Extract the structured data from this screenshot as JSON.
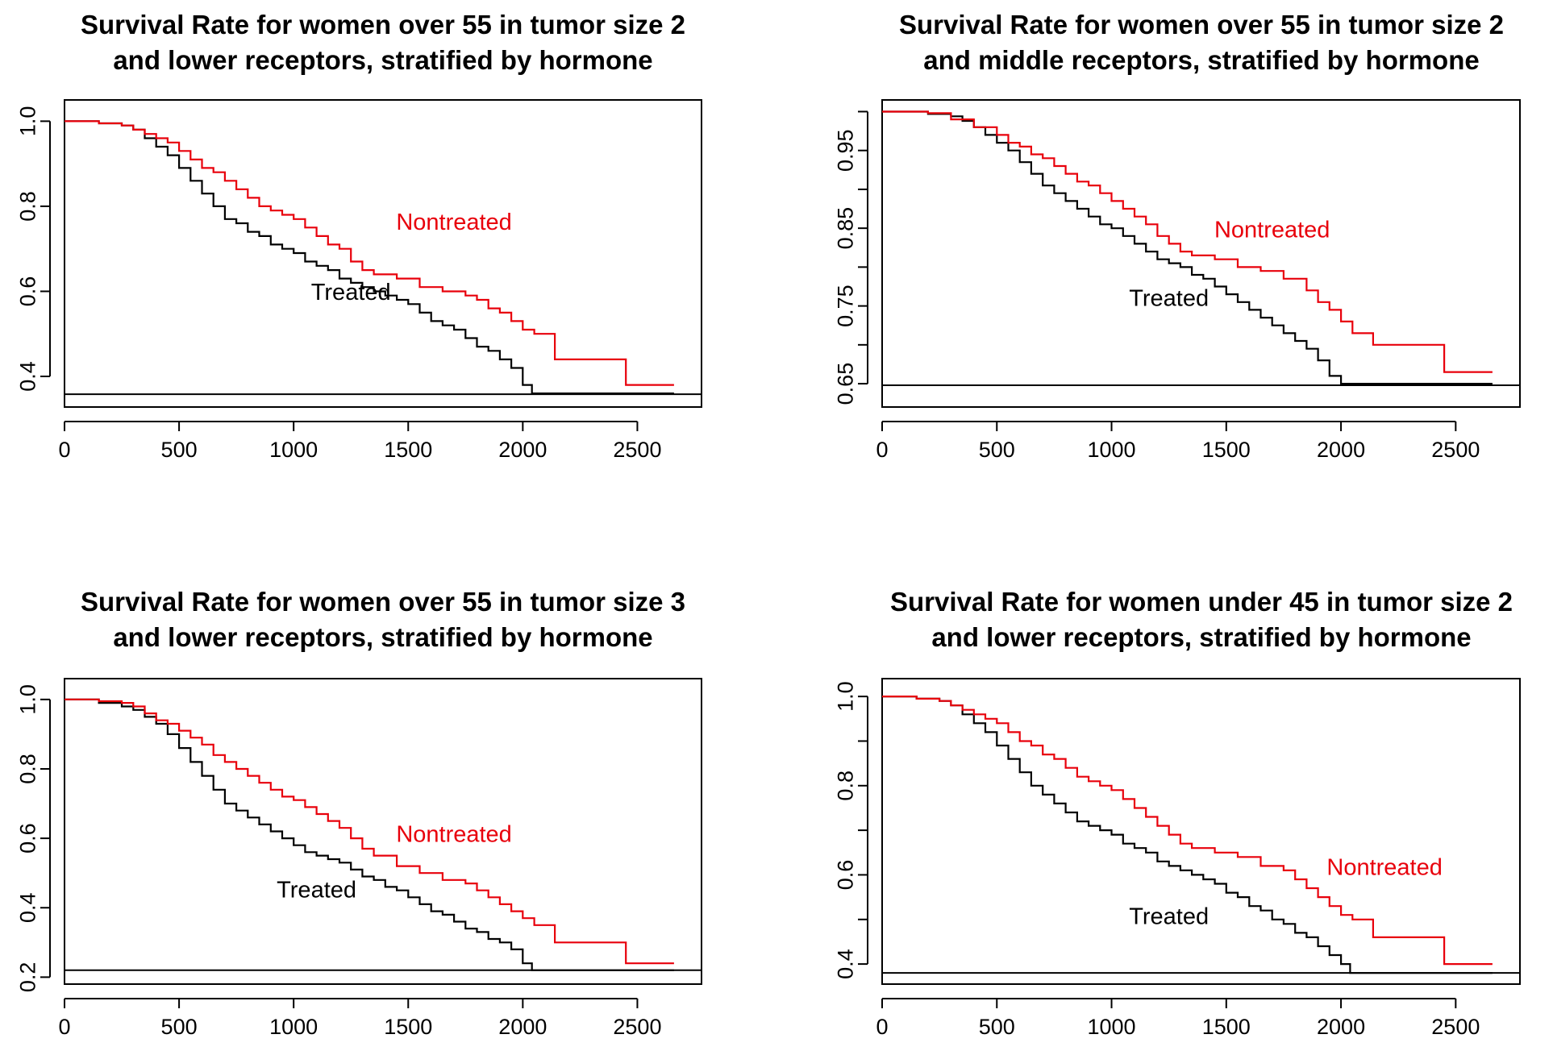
{
  "colors": {
    "treated": "#000000",
    "nontreated": "#e8000b",
    "axis": "#000000"
  },
  "chart_data": [
    {
      "type": "line",
      "title": [
        "Survival Rate for women over 55 in tumor size 2",
        "and lower receptors, stratified by hormone"
      ],
      "xlabel": "",
      "ylabel": "",
      "xlim": [
        0,
        2780
      ],
      "ylim": [
        0.328,
        1.05
      ],
      "xticks": [
        0,
        500,
        1000,
        1500,
        2000,
        2500
      ],
      "yticks": [
        0.4,
        0.6,
        0.8,
        1.0
      ],
      "ytick_labels": [
        "0.4",
        "0.6",
        "0.8",
        "1.0"
      ],
      "hline": 0.358,
      "annotations": [
        {
          "text": "Nontreated",
          "series": "nontreated",
          "x": 1700,
          "y": 0.745
        },
        {
          "text": "Treated",
          "series": "treated",
          "x": 1250,
          "y": 0.58
        }
      ],
      "series": [
        {
          "key": "treated",
          "x": [
            0,
            150,
            250,
            300,
            350,
            400,
            450,
            500,
            550,
            600,
            650,
            700,
            750,
            800,
            850,
            900,
            950,
            1000,
            1050,
            1100,
            1150,
            1200,
            1250,
            1300,
            1350,
            1400,
            1450,
            1500,
            1550,
            1600,
            1650,
            1700,
            1750,
            1800,
            1850,
            1900,
            1950,
            2000,
            2040,
            2660
          ],
          "y": [
            1.0,
            0.995,
            0.99,
            0.98,
            0.96,
            0.94,
            0.92,
            0.89,
            0.86,
            0.83,
            0.8,
            0.77,
            0.76,
            0.74,
            0.73,
            0.71,
            0.7,
            0.69,
            0.67,
            0.66,
            0.65,
            0.63,
            0.62,
            0.61,
            0.6,
            0.59,
            0.58,
            0.57,
            0.55,
            0.53,
            0.52,
            0.51,
            0.49,
            0.47,
            0.46,
            0.44,
            0.42,
            0.38,
            0.36,
            0.36
          ]
        },
        {
          "key": "nontreated",
          "x": [
            0,
            150,
            250,
            300,
            350,
            400,
            450,
            500,
            550,
            600,
            650,
            700,
            750,
            800,
            850,
            900,
            950,
            1000,
            1050,
            1100,
            1150,
            1200,
            1250,
            1300,
            1350,
            1450,
            1550,
            1650,
            1750,
            1800,
            1850,
            1900,
            1950,
            2000,
            2050,
            2140,
            2450,
            2660
          ],
          "y": [
            1.0,
            0.995,
            0.99,
            0.98,
            0.97,
            0.96,
            0.95,
            0.93,
            0.91,
            0.89,
            0.88,
            0.86,
            0.84,
            0.82,
            0.8,
            0.79,
            0.78,
            0.77,
            0.75,
            0.73,
            0.71,
            0.7,
            0.67,
            0.65,
            0.64,
            0.63,
            0.61,
            0.6,
            0.59,
            0.58,
            0.56,
            0.55,
            0.53,
            0.51,
            0.5,
            0.44,
            0.38,
            0.38
          ]
        }
      ]
    },
    {
      "type": "line",
      "title": [
        "Survival Rate for women over 55 in tumor size 2",
        "and middle receptors, stratified by hormone"
      ],
      "xlabel": "",
      "ylabel": "",
      "xlim": [
        0,
        2780
      ],
      "ylim": [
        0.62,
        1.015
      ],
      "xticks": [
        0,
        500,
        1000,
        1500,
        2000,
        2500
      ],
      "yticks": [
        0.65,
        0.7,
        0.75,
        0.8,
        0.85,
        0.9,
        0.95,
        1.0
      ],
      "ytick_labels": [
        "0.65",
        "",
        "0.75",
        "",
        "0.85",
        "",
        "0.95",
        ""
      ],
      "hline": 0.648,
      "annotations": [
        {
          "text": "Nontreated",
          "series": "nontreated",
          "x": 1700,
          "y": 0.838
        },
        {
          "text": "Treated",
          "series": "treated",
          "x": 1250,
          "y": 0.75
        }
      ],
      "series": [
        {
          "key": "treated",
          "x": [
            0,
            200,
            300,
            350,
            400,
            450,
            500,
            550,
            600,
            650,
            700,
            750,
            800,
            850,
            900,
            950,
            1000,
            1050,
            1100,
            1150,
            1200,
            1250,
            1300,
            1350,
            1400,
            1450,
            1500,
            1550,
            1600,
            1650,
            1700,
            1750,
            1800,
            1850,
            1900,
            1950,
            2000,
            2040,
            2660
          ],
          "y": [
            1.0,
            0.997,
            0.994,
            0.988,
            0.98,
            0.97,
            0.96,
            0.95,
            0.935,
            0.92,
            0.905,
            0.895,
            0.885,
            0.875,
            0.865,
            0.855,
            0.85,
            0.84,
            0.83,
            0.82,
            0.81,
            0.805,
            0.8,
            0.79,
            0.785,
            0.775,
            0.765,
            0.755,
            0.745,
            0.735,
            0.725,
            0.715,
            0.705,
            0.695,
            0.68,
            0.66,
            0.65,
            0.65,
            0.65
          ]
        },
        {
          "key": "nontreated",
          "x": [
            0,
            200,
            300,
            400,
            500,
            550,
            600,
            650,
            700,
            750,
            800,
            850,
            900,
            950,
            1000,
            1050,
            1100,
            1150,
            1200,
            1250,
            1300,
            1350,
            1450,
            1550,
            1650,
            1750,
            1850,
            1900,
            1950,
            2000,
            2050,
            2140,
            2450,
            2660
          ],
          "y": [
            1.0,
            0.998,
            0.99,
            0.98,
            0.97,
            0.96,
            0.955,
            0.945,
            0.94,
            0.93,
            0.92,
            0.91,
            0.905,
            0.895,
            0.885,
            0.875,
            0.865,
            0.855,
            0.84,
            0.83,
            0.82,
            0.815,
            0.81,
            0.8,
            0.795,
            0.785,
            0.77,
            0.755,
            0.745,
            0.73,
            0.715,
            0.7,
            0.665,
            0.665
          ]
        }
      ]
    },
    {
      "type": "line",
      "title": [
        "Survival Rate for women over 55 in tumor size 3",
        "and lower receptors, stratified by hormone"
      ],
      "xlabel": "",
      "ylabel": "",
      "xlim": [
        0,
        2780
      ],
      "ylim": [
        0.18,
        1.06
      ],
      "xticks": [
        0,
        500,
        1000,
        1500,
        2000,
        2500
      ],
      "yticks": [
        0.2,
        0.4,
        0.6,
        0.8,
        1.0
      ],
      "ytick_labels": [
        "0.2",
        "0.4",
        "0.6",
        "0.8",
        "1.0"
      ],
      "hline": 0.22,
      "annotations": [
        {
          "text": "Nontreated",
          "series": "nontreated",
          "x": 1700,
          "y": 0.59
        },
        {
          "text": "Treated",
          "series": "treated",
          "x": 1100,
          "y": 0.43
        }
      ],
      "series": [
        {
          "key": "treated",
          "x": [
            0,
            150,
            250,
            300,
            350,
            400,
            450,
            500,
            550,
            600,
            650,
            700,
            750,
            800,
            850,
            900,
            950,
            1000,
            1050,
            1100,
            1150,
            1200,
            1250,
            1300,
            1350,
            1400,
            1450,
            1500,
            1550,
            1600,
            1650,
            1700,
            1750,
            1800,
            1850,
            1900,
            1950,
            2000,
            2040,
            2660
          ],
          "y": [
            1.0,
            0.99,
            0.98,
            0.97,
            0.95,
            0.93,
            0.9,
            0.86,
            0.82,
            0.78,
            0.74,
            0.7,
            0.68,
            0.66,
            0.64,
            0.62,
            0.6,
            0.58,
            0.56,
            0.55,
            0.54,
            0.53,
            0.51,
            0.49,
            0.48,
            0.46,
            0.45,
            0.43,
            0.41,
            0.39,
            0.38,
            0.36,
            0.34,
            0.33,
            0.31,
            0.3,
            0.28,
            0.24,
            0.22,
            0.22
          ]
        },
        {
          "key": "nontreated",
          "x": [
            0,
            150,
            250,
            300,
            350,
            400,
            450,
            500,
            550,
            600,
            650,
            700,
            750,
            800,
            850,
            900,
            950,
            1000,
            1050,
            1100,
            1150,
            1200,
            1250,
            1300,
            1350,
            1450,
            1550,
            1650,
            1750,
            1800,
            1850,
            1900,
            1950,
            2000,
            2050,
            2140,
            2450,
            2660
          ],
          "y": [
            1.0,
            0.995,
            0.99,
            0.98,
            0.96,
            0.94,
            0.93,
            0.91,
            0.89,
            0.87,
            0.84,
            0.82,
            0.8,
            0.78,
            0.76,
            0.74,
            0.72,
            0.71,
            0.69,
            0.67,
            0.65,
            0.63,
            0.6,
            0.57,
            0.55,
            0.52,
            0.5,
            0.48,
            0.47,
            0.45,
            0.43,
            0.41,
            0.39,
            0.37,
            0.35,
            0.3,
            0.24,
            0.24
          ]
        }
      ]
    },
    {
      "type": "line",
      "title": [
        "Survival Rate for women under 45 in tumor size 2",
        "and lower receptors, stratified by hormone"
      ],
      "xlabel": "",
      "ylabel": "",
      "xlim": [
        0,
        2780
      ],
      "ylim": [
        0.355,
        1.04
      ],
      "xticks": [
        0,
        500,
        1000,
        1500,
        2000,
        2500
      ],
      "yticks": [
        0.4,
        0.5,
        0.6,
        0.7,
        0.8,
        0.9,
        1.0
      ],
      "ytick_labels": [
        "0.4",
        "",
        "0.6",
        "",
        "0.8",
        "",
        "1.0"
      ],
      "hline": 0.38,
      "annotations": [
        {
          "text": "Nontreated",
          "series": "nontreated",
          "x": 2190,
          "y": 0.6
        },
        {
          "text": "Treated",
          "series": "treated",
          "x": 1250,
          "y": 0.49
        }
      ],
      "series": [
        {
          "key": "treated",
          "x": [
            0,
            150,
            250,
            300,
            350,
            400,
            450,
            500,
            550,
            600,
            650,
            700,
            750,
            800,
            850,
            900,
            950,
            1000,
            1050,
            1100,
            1150,
            1200,
            1250,
            1300,
            1350,
            1400,
            1450,
            1500,
            1550,
            1600,
            1650,
            1700,
            1750,
            1800,
            1850,
            1900,
            1950,
            2000,
            2040,
            2660
          ],
          "y": [
            1.0,
            0.995,
            0.99,
            0.98,
            0.96,
            0.94,
            0.92,
            0.89,
            0.86,
            0.83,
            0.8,
            0.78,
            0.76,
            0.74,
            0.72,
            0.71,
            0.7,
            0.69,
            0.67,
            0.66,
            0.65,
            0.63,
            0.62,
            0.61,
            0.6,
            0.59,
            0.58,
            0.56,
            0.55,
            0.53,
            0.52,
            0.5,
            0.49,
            0.47,
            0.46,
            0.44,
            0.42,
            0.4,
            0.38,
            0.38
          ]
        },
        {
          "key": "nontreated",
          "x": [
            0,
            150,
            250,
            300,
            350,
            400,
            450,
            500,
            550,
            600,
            650,
            700,
            750,
            800,
            850,
            900,
            950,
            1000,
            1050,
            1100,
            1150,
            1200,
            1250,
            1300,
            1350,
            1450,
            1550,
            1650,
            1750,
            1800,
            1850,
            1900,
            1950,
            2000,
            2050,
            2140,
            2450,
            2660
          ],
          "y": [
            1.0,
            0.995,
            0.99,
            0.98,
            0.97,
            0.96,
            0.95,
            0.94,
            0.92,
            0.9,
            0.89,
            0.87,
            0.86,
            0.84,
            0.82,
            0.81,
            0.8,
            0.79,
            0.77,
            0.75,
            0.73,
            0.71,
            0.69,
            0.67,
            0.66,
            0.65,
            0.64,
            0.62,
            0.61,
            0.59,
            0.57,
            0.55,
            0.53,
            0.51,
            0.5,
            0.46,
            0.4,
            0.4
          ]
        }
      ]
    }
  ]
}
